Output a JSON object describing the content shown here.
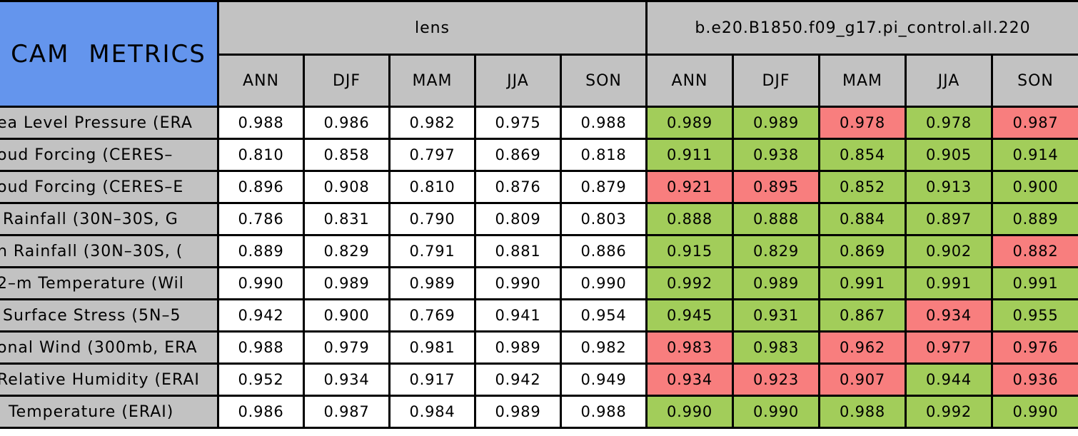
{
  "chart_data": {
    "type": "table",
    "title": "CAM METRICS",
    "title_note": "left edge of table is cropped; row labels are truncated at image edge",
    "column_groups": [
      {
        "label": "lens",
        "seasons": [
          "ANN",
          "DJF",
          "MAM",
          "JJA",
          "SON"
        ]
      },
      {
        "label": "b.e20.B1850.f09_g17.pi_control.all.220",
        "seasons": [
          "ANN",
          "DJF",
          "MAM",
          "JJA",
          "SON"
        ]
      }
    ],
    "rows": [
      {
        "label": "ea Level Pressure (ERA",
        "lens": [
          "0.988",
          "0.986",
          "0.982",
          "0.975",
          "0.988"
        ],
        "control": [
          {
            "v": "0.989",
            "s": "g"
          },
          {
            "v": "0.989",
            "s": "g"
          },
          {
            "v": "0.978",
            "s": "r"
          },
          {
            "v": "0.978",
            "s": "g"
          },
          {
            "v": "0.987",
            "s": "r"
          }
        ]
      },
      {
        "label": "oud Forcing (CERES–",
        "lens": [
          "0.810",
          "0.858",
          "0.797",
          "0.869",
          "0.818"
        ],
        "control": [
          {
            "v": "0.911",
            "s": "g"
          },
          {
            "v": "0.938",
            "s": "g"
          },
          {
            "v": "0.854",
            "s": "g"
          },
          {
            "v": "0.905",
            "s": "g"
          },
          {
            "v": "0.914",
            "s": "g"
          }
        ]
      },
      {
        "label": "oud Forcing (CERES–E",
        "lens": [
          "0.896",
          "0.908",
          "0.810",
          "0.876",
          "0.879"
        ],
        "control": [
          {
            "v": "0.921",
            "s": "r"
          },
          {
            "v": "0.895",
            "s": "r"
          },
          {
            "v": "0.852",
            "s": "g"
          },
          {
            "v": "0.913",
            "s": "g"
          },
          {
            "v": "0.900",
            "s": "g"
          }
        ]
      },
      {
        "label": " Rainfall (30N–30S, G",
        "lens": [
          "0.786",
          "0.831",
          "0.790",
          "0.809",
          "0.803"
        ],
        "control": [
          {
            "v": "0.888",
            "s": "g"
          },
          {
            "v": "0.888",
            "s": "g"
          },
          {
            "v": "0.884",
            "s": "g"
          },
          {
            "v": "0.897",
            "s": "g"
          },
          {
            "v": "0.889",
            "s": "g"
          }
        ]
      },
      {
        "label": "n Rainfall (30N–30S, (",
        "lens": [
          "0.889",
          "0.829",
          "0.791",
          "0.881",
          "0.886"
        ],
        "control": [
          {
            "v": "0.915",
            "s": "g"
          },
          {
            "v": "0.829",
            "s": "g"
          },
          {
            "v": "0.869",
            "s": "g"
          },
          {
            "v": "0.902",
            "s": "g"
          },
          {
            "v": "0.882",
            "s": "r"
          }
        ]
      },
      {
        "label": "2–m Temperature (Wil",
        "lens": [
          "0.990",
          "0.989",
          "0.989",
          "0.990",
          "0.990"
        ],
        "control": [
          {
            "v": "0.992",
            "s": "g"
          },
          {
            "v": "0.989",
            "s": "g"
          },
          {
            "v": "0.991",
            "s": "g"
          },
          {
            "v": "0.991",
            "s": "g"
          },
          {
            "v": "0.991",
            "s": "g"
          }
        ]
      },
      {
        "label": " Surface Stress (5N–5",
        "lens": [
          "0.942",
          "0.900",
          "0.769",
          "0.941",
          "0.954"
        ],
        "control": [
          {
            "v": "0.945",
            "s": "g"
          },
          {
            "v": "0.931",
            "s": "g"
          },
          {
            "v": "0.867",
            "s": "g"
          },
          {
            "v": "0.934",
            "s": "r"
          },
          {
            "v": "0.955",
            "s": "g"
          }
        ]
      },
      {
        "label": "onal Wind (300mb, ERA",
        "lens": [
          "0.988",
          "0.979",
          "0.981",
          "0.989",
          "0.982"
        ],
        "control": [
          {
            "v": "0.983",
            "s": "r"
          },
          {
            "v": "0.983",
            "s": "g"
          },
          {
            "v": "0.962",
            "s": "r"
          },
          {
            "v": "0.977",
            "s": "r"
          },
          {
            "v": "0.976",
            "s": "r"
          }
        ]
      },
      {
        "label": "Relative Humidity (ERAI",
        "lens": [
          "0.952",
          "0.934",
          "0.917",
          "0.942",
          "0.949"
        ],
        "control": [
          {
            "v": "0.934",
            "s": "r"
          },
          {
            "v": "0.923",
            "s": "r"
          },
          {
            "v": "0.907",
            "s": "r"
          },
          {
            "v": "0.944",
            "s": "g"
          },
          {
            "v": "0.936",
            "s": "r"
          }
        ]
      },
      {
        "label": "  Temperature (ERAI)",
        "lens": [
          "0.986",
          "0.987",
          "0.984",
          "0.989",
          "0.988"
        ],
        "control": [
          {
            "v": "0.990",
            "s": "g"
          },
          {
            "v": "0.990",
            "s": "g"
          },
          {
            "v": "0.988",
            "s": "g"
          },
          {
            "v": "0.992",
            "s": "g"
          },
          {
            "v": "0.990",
            "s": "g"
          }
        ]
      }
    ],
    "colors": {
      "title_blue": "#6495ED",
      "header_gray": "#C2C2C2",
      "lens_cell_white": "#FFFFFF",
      "green": "#A2CD5A",
      "red": "#F87E7E",
      "border_black": "#000000"
    },
    "cell_status_legend": {
      "g": "green cell",
      "r": "red cell"
    }
  }
}
